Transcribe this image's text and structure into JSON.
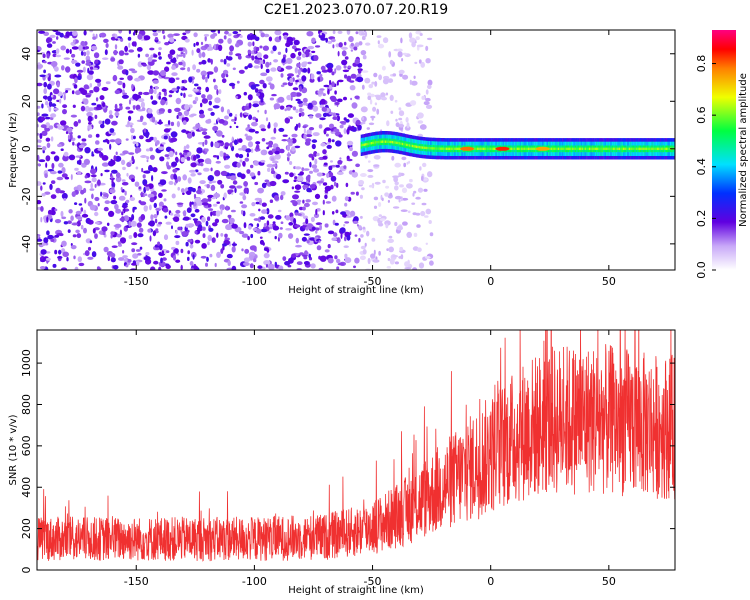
{
  "title": "C2E1.2023.070.07.20.R19",
  "colors": {
    "snr_line": "#f03030",
    "axis": "#000000",
    "background": "#ffffff"
  },
  "chart_data": [
    {
      "type": "heatmap",
      "xlabel": "Height of straight line (km)",
      "ylabel": "Frequency (Hz)",
      "xlim": [
        -192,
        78
      ],
      "ylim": [
        -51,
        50
      ],
      "xticks": [
        -150,
        -100,
        -50,
        0,
        50
      ],
      "yticks": [
        -40,
        -20,
        0,
        20,
        40
      ],
      "colorbar": {
        "label": "Normalized spectral amplitude",
        "range": [
          0,
          0.93
        ],
        "ticks": [
          0.0,
          0.2,
          0.4,
          0.6,
          0.8
        ],
        "colormap": "white-purple-blue-cyan-green-yellow-red-magenta"
      },
      "regions": [
        {
          "name": "noise",
          "x_range": [
            -192,
            -55
          ],
          "freq_range": [
            -51,
            50
          ],
          "amplitude": 0.1
        },
        {
          "name": "fading noise",
          "x_range": [
            -55,
            -25
          ],
          "freq_range": [
            -51,
            50
          ],
          "amplitude": 0.05
        },
        {
          "name": "carrier",
          "x_range": [
            -55,
            78
          ],
          "freq_center": 0,
          "freq_halfwidth": 3,
          "amplitude": 0.45
        }
      ],
      "carrier_peaks": [
        {
          "x": -10,
          "amplitude": 0.85
        },
        {
          "x": 5,
          "amplitude": 0.9
        },
        {
          "x": 22,
          "amplitude": 0.8
        }
      ]
    },
    {
      "type": "line",
      "xlabel": "Height of straight line (km)",
      "ylabel": "SNR (10 * v/v)",
      "xlim": [
        -192,
        78
      ],
      "ylim": [
        0,
        1160
      ],
      "xticks": [
        -150,
        -100,
        -50,
        0,
        50
      ],
      "yticks": [
        0,
        200,
        400,
        600,
        800,
        1000
      ],
      "series": [
        {
          "color": "#f03030",
          "x": [
            -192,
            -150,
            -100,
            -70,
            -55,
            -45,
            -35,
            -25,
            -15,
            -5,
            5,
            15,
            25,
            35,
            45,
            55,
            65,
            78
          ],
          "y": [
            150,
            150,
            150,
            160,
            190,
            230,
            290,
            370,
            440,
            520,
            600,
            680,
            720,
            730,
            730,
            720,
            700,
            690
          ]
        }
      ]
    }
  ]
}
